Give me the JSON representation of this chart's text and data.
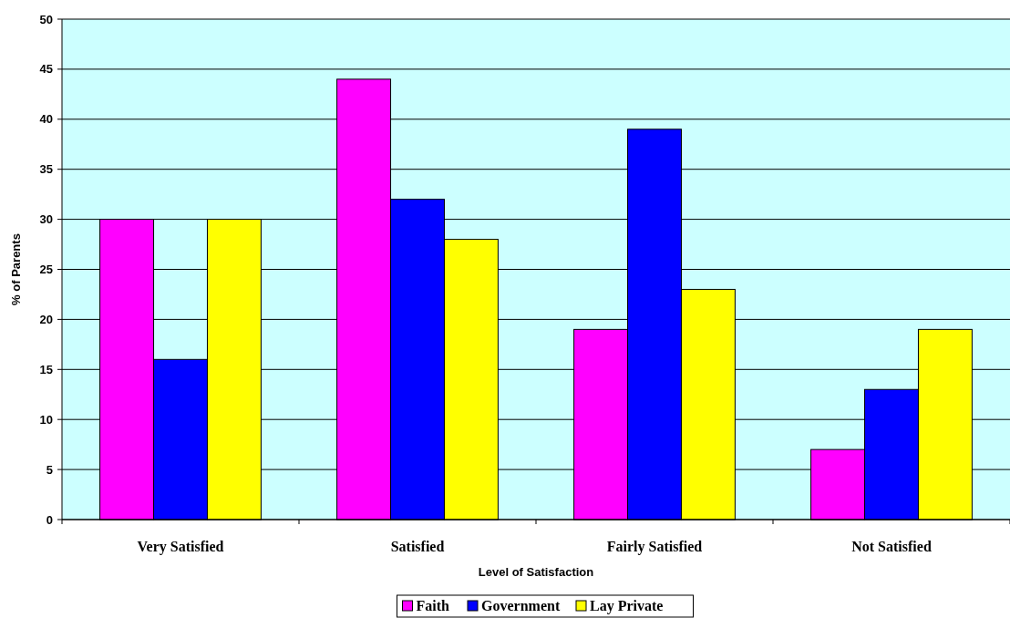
{
  "chart_data": {
    "type": "bar",
    "xlabel": "Level of Satisfaction",
    "ylabel": "% of Parents",
    "categories": [
      "Very Satisfied",
      "Satisfied",
      "Fairly Satisfied",
      "Not Satisfied"
    ],
    "series": [
      {
        "name": "Faith",
        "color": "#ff00ff",
        "values": [
          30,
          44,
          19,
          7
        ]
      },
      {
        "name": "Government",
        "color": "#0000ff",
        "values": [
          16,
          32,
          39,
          13
        ]
      },
      {
        "name": "Lay Private",
        "color": "#ffff00",
        "values": [
          30,
          28,
          23,
          19
        ]
      }
    ],
    "ylim": [
      0,
      50
    ],
    "yticks": [
      0,
      5,
      10,
      15,
      20,
      25,
      30,
      35,
      40,
      45,
      50
    ],
    "grid": "y",
    "legend": "bottom"
  }
}
